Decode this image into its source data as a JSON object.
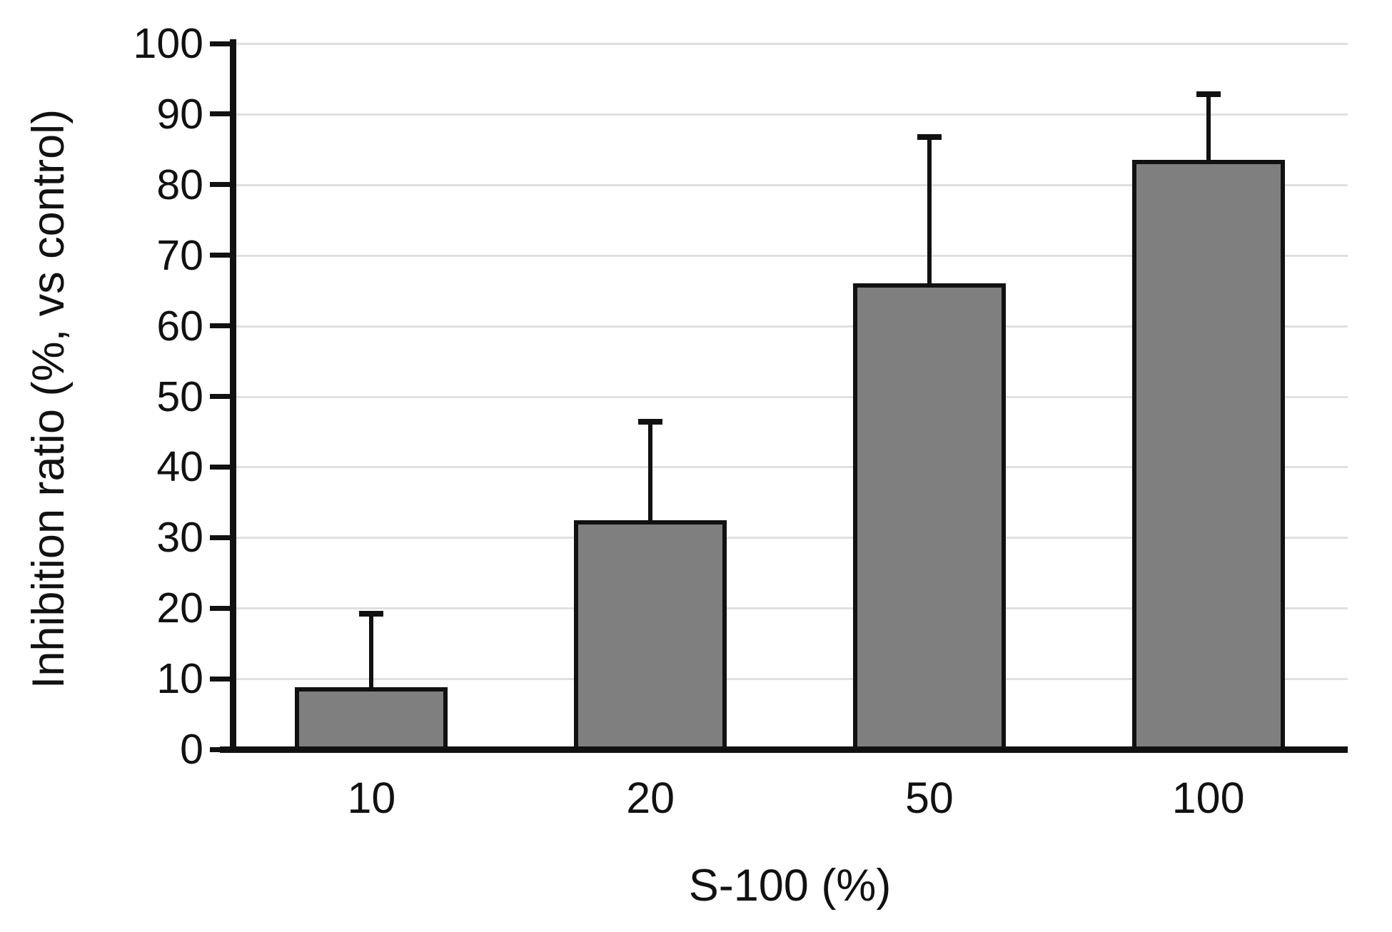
{
  "chart_data": {
    "type": "bar",
    "title": "",
    "xlabel": "S-100 (%)",
    "ylabel": "Inhibition ratio (%, vs control)",
    "categories": [
      "10",
      "20",
      "50",
      "100"
    ],
    "series": [
      {
        "name": "Inhibition ratio",
        "values": [
          8.8,
          32.5,
          66,
          83.5
        ],
        "error_plus": [
          10.6,
          14.1,
          21,
          9.5
        ]
      }
    ],
    "ylim": [
      0,
      100
    ],
    "y_ticks": [
      0,
      10,
      20,
      30,
      40,
      50,
      60,
      70,
      80,
      90,
      100
    ],
    "grid": "horizontal gridlines at every y tick",
    "legend_position": "none",
    "colors": {
      "bar_fill": "#7f7f7f",
      "bar_border": "#111111",
      "axis": "#111111",
      "gridline": "#e0e0e0",
      "background": "#ffffff"
    }
  }
}
